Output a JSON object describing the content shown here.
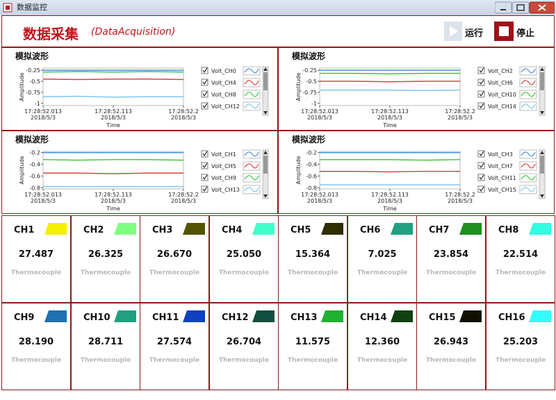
{
  "window": {
    "title": "数据监控"
  },
  "header": {
    "title": "数据采集",
    "subtitle": "(DataAcquisition)",
    "run_button": "运行",
    "stop_button": "停止"
  },
  "chart_data": [
    {
      "type": "line",
      "title": "模拟波形",
      "ylabel": "Amplitude",
      "xlabel": "Time",
      "x": [
        52.013,
        52.063,
        52.113,
        52.163,
        52.213
      ],
      "xlim": [
        52.013,
        52.213
      ],
      "xticks": [
        {
          "value": 52.013,
          "label": "17:28:52.013",
          "date": "2018/5/3"
        },
        {
          "value": 52.113,
          "label": "17:28:52.113",
          "date": "2018/5/3"
        },
        {
          "value": 52.213,
          "label": "17:28:52.2",
          "date": "2018/5/3"
        }
      ],
      "ylim": [
        -1.05,
        -0.2
      ],
      "yticks": [
        -0.25,
        -0.5,
        -0.75,
        -1
      ],
      "series": [
        {
          "name": "Volt_CH0",
          "color": "#4a90d9",
          "values": [
            -0.25,
            -0.25,
            -0.25,
            -0.25,
            -0.25
          ]
        },
        {
          "name": "Volt_CH4",
          "color": "#d9434a",
          "values": [
            -0.45,
            -0.46,
            -0.45,
            -0.45,
            -0.46
          ]
        },
        {
          "name": "Volt_CH8",
          "color": "#3cc83c",
          "values": [
            -0.29,
            -0.28,
            -0.29,
            -0.28,
            -0.29
          ]
        },
        {
          "name": "Volt_CH12",
          "color": "#7ec8f0",
          "values": [
            -0.85,
            -0.84,
            -0.86,
            -0.85,
            -0.85
          ]
        }
      ]
    },
    {
      "type": "line",
      "title": "模拟波形",
      "ylabel": "Amplitude",
      "xlabel": "Time",
      "x": [
        52.013,
        52.063,
        52.113,
        52.163,
        52.213
      ],
      "xlim": [
        52.013,
        52.213
      ],
      "xticks": [
        {
          "value": 52.013,
          "label": "17:28:52.013",
          "date": "2018/5/3"
        },
        {
          "value": 52.113,
          "label": "17:28:52.113",
          "date": "2018/5/3"
        },
        {
          "value": 52.213,
          "label": "17:28:52.2",
          "date": "2018/5/3"
        }
      ],
      "ylim": [
        -1.05,
        -0.2
      ],
      "yticks": [
        -0.25,
        -0.5,
        -0.75,
        -1
      ],
      "series": [
        {
          "name": "Volt_CH2",
          "color": "#4a90d9",
          "values": [
            -0.25,
            -0.25,
            -0.25,
            -0.25,
            -0.25
          ]
        },
        {
          "name": "Volt_CH6",
          "color": "#d9434a",
          "values": [
            -0.5,
            -0.5,
            -0.51,
            -0.5,
            -0.5
          ]
        },
        {
          "name": "Volt_CH10",
          "color": "#3cc83c",
          "values": [
            -0.32,
            -0.32,
            -0.33,
            -0.32,
            -0.32
          ]
        },
        {
          "name": "Volt_CH14",
          "color": "#7ec8f0",
          "values": [
            -0.7,
            -0.7,
            -0.7,
            -0.71,
            -0.7
          ]
        }
      ]
    },
    {
      "type": "line",
      "title": "模拟波形",
      "ylabel": "Amplitude",
      "xlabel": "Time",
      "x": [
        52.013,
        52.063,
        52.113,
        52.163,
        52.213
      ],
      "xlim": [
        52.013,
        52.213
      ],
      "xticks": [
        {
          "value": 52.013,
          "label": "17:28:52.013",
          "date": "2018/5/3"
        },
        {
          "value": 52.113,
          "label": "17:28:52.113",
          "date": "2018/5/3"
        },
        {
          "value": 52.213,
          "label": "17:28:52.2",
          "date": "2018/5/3"
        }
      ],
      "ylim": [
        -0.82,
        -0.18
      ],
      "yticks": [
        -0.2,
        -0.4,
        -0.6,
        -0.8
      ],
      "series": [
        {
          "name": "Volt_CH1",
          "color": "#4a90d9",
          "values": [
            -0.2,
            -0.2,
            -0.2,
            -0.2,
            -0.2
          ]
        },
        {
          "name": "Volt_CH5",
          "color": "#d9434a",
          "values": [
            -0.55,
            -0.55,
            -0.56,
            -0.55,
            -0.55
          ]
        },
        {
          "name": "Volt_CH9",
          "color": "#3cc83c",
          "values": [
            -0.32,
            -0.33,
            -0.32,
            -0.32,
            -0.33
          ]
        },
        {
          "name": "Volt_CH13",
          "color": "#7ec8f0",
          "values": [
            -0.78,
            -0.78,
            -0.78,
            -0.78,
            -0.78
          ]
        }
      ]
    },
    {
      "type": "line",
      "title": "模拟波形",
      "ylabel": "Amplitude",
      "xlabel": "Time",
      "x": [
        52.013,
        52.063,
        52.113,
        52.163,
        52.213
      ],
      "xlim": [
        52.013,
        52.213
      ],
      "xticks": [
        {
          "value": 52.013,
          "label": "17:28:52.013",
          "date": "2018/5/3"
        },
        {
          "value": 52.113,
          "label": "17:28:52.113",
          "date": "2018/5/3"
        },
        {
          "value": 52.213,
          "label": "17:28:52.2",
          "date": "2018/5/3"
        }
      ],
      "ylim": [
        -0.82,
        -0.18
      ],
      "yticks": [
        -0.2,
        -0.4,
        -0.6,
        -0.8
      ],
      "series": [
        {
          "name": "Volt_CH3",
          "color": "#4a90d9",
          "values": [
            -0.2,
            -0.2,
            -0.2,
            -0.2,
            -0.2
          ]
        },
        {
          "name": "Volt_CH7",
          "color": "#d9434a",
          "values": [
            -0.52,
            -0.52,
            -0.53,
            -0.52,
            -0.52
          ]
        },
        {
          "name": "Volt_CH11",
          "color": "#3cc83c",
          "values": [
            -0.32,
            -0.32,
            -0.32,
            -0.33,
            -0.32
          ]
        },
        {
          "name": "Volt_CH15",
          "color": "#7ec8f0",
          "values": [
            -0.75,
            -0.75,
            -0.75,
            -0.75,
            -0.75
          ]
        }
      ]
    }
  ],
  "cards": [
    {
      "name": "CH1",
      "value": "27.487",
      "sensor": "Thermocouple",
      "color": "#f5ef00"
    },
    {
      "name": "CH2",
      "value": "26.325",
      "sensor": "Thermocouple",
      "color": "#80ff80"
    },
    {
      "name": "CH3",
      "value": "26.670",
      "sensor": "Thermocouple",
      "color": "#545400"
    },
    {
      "name": "CH4",
      "value": "25.050",
      "sensor": "Thermocouple",
      "color": "#40ffc8"
    },
    {
      "name": "CH5",
      "value": "15.364",
      "sensor": "Thermocouple",
      "color": "#2e2e00"
    },
    {
      "name": "CH6",
      "value": "7.025",
      "sensor": "Thermocouple",
      "color": "#20a080"
    },
    {
      "name": "CH7",
      "value": "23.854",
      "sensor": "Thermocouple",
      "color": "#209020"
    },
    {
      "name": "CH8",
      "value": "22.514",
      "sensor": "Thermocouple",
      "color": "#30ffe0"
    },
    {
      "name": "CH9",
      "value": "28.190",
      "sensor": "Thermocouple",
      "color": "#2070b0"
    },
    {
      "name": "CH10",
      "value": "28.711",
      "sensor": "Thermocouple",
      "color": "#20a080"
    },
    {
      "name": "CH11",
      "value": "27.574",
      "sensor": "Thermocouple",
      "color": "#1040c0"
    },
    {
      "name": "CH12",
      "value": "26.704",
      "sensor": "Thermocouple",
      "color": "#105040"
    },
    {
      "name": "CH13",
      "value": "11.575",
      "sensor": "Thermocouple",
      "color": "#20b030"
    },
    {
      "name": "CH14",
      "value": "12.360",
      "sensor": "Thermocouple",
      "color": "#104010"
    },
    {
      "name": "CH15",
      "value": "26.943",
      "sensor": "Thermocouple",
      "color": "#101000"
    },
    {
      "name": "CH16",
      "value": "25.203",
      "sensor": "Thermocouple",
      "color": "#30ffff"
    }
  ]
}
